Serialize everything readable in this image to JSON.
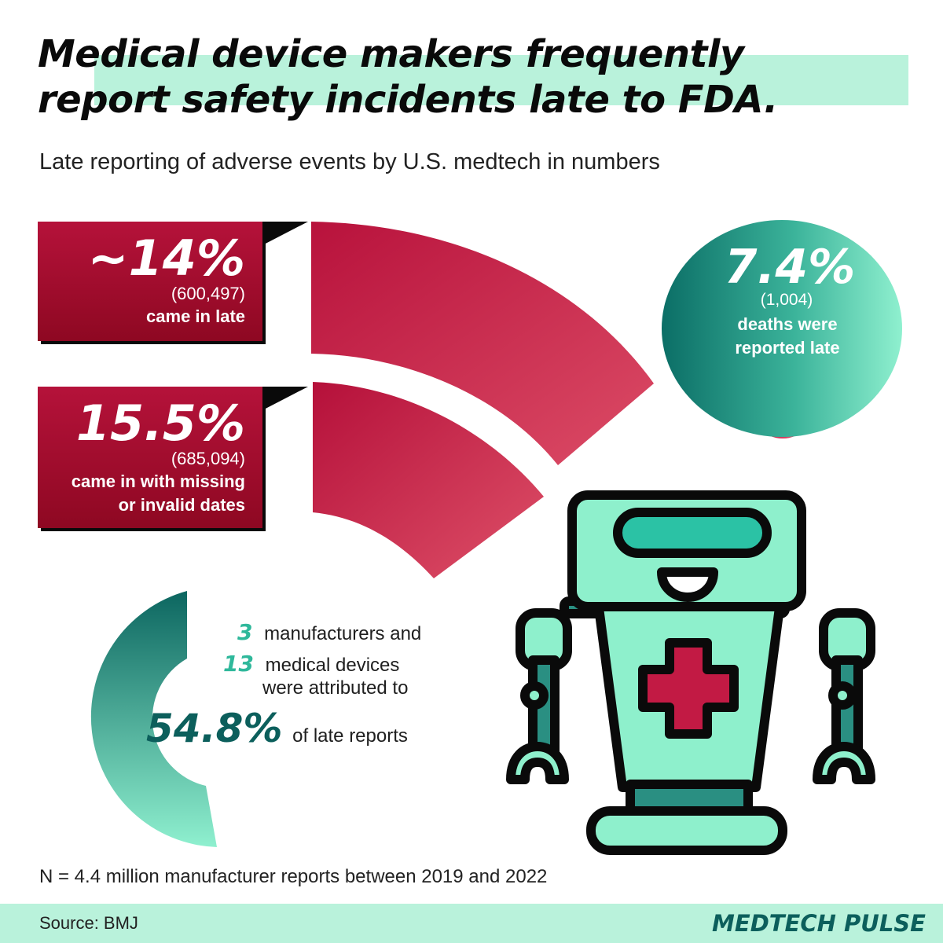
{
  "title": {
    "line1": "Medical device makers frequently",
    "line2": "report safety incidents late to FDA."
  },
  "subtitle": "Late reporting of adverse events by U.S. medtech in numbers",
  "stats": {
    "late": {
      "value": "~14%",
      "count": "(600,497)",
      "label": "came in late"
    },
    "missing": {
      "value": "15.5%",
      "count": "(685,094)",
      "label_line1": "came in with missing",
      "label_line2": "or invalid dates"
    },
    "deaths": {
      "value": "7.4%",
      "count": "(1,004)",
      "label_line1": "deaths were",
      "label_line2": "reported late"
    },
    "manufacturers": {
      "value": "3",
      "label": "manufacturers and"
    },
    "devices": {
      "value": "13",
      "label_line1": "medical devices",
      "label_line2": "were attributed to"
    },
    "share": {
      "value": "54.8%",
      "label": "of late reports"
    }
  },
  "footnote": "N = 4.4 million manufacturer reports between 2019 and 2022",
  "footer": {
    "source": "Source: BMJ",
    "brand": "MEDTECH PULSE"
  },
  "colors": {
    "crimson": "#c21a44",
    "teal": "#0c5f5c",
    "mint": "#b9f2db",
    "robot": "#8ef0cc"
  },
  "icons": [
    "robot-illustration",
    "cross-icon"
  ]
}
